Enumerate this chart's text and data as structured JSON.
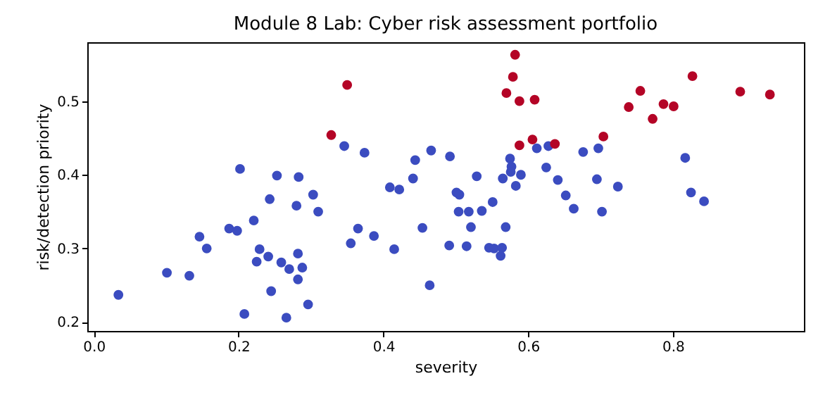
{
  "chart_data": {
    "type": "scatter",
    "title": "Module 8 Lab: Cyber risk assessment portfolio",
    "xlabel": "severity",
    "ylabel": "risk/detection priority",
    "xlim": [
      -0.009,
      0.981
    ],
    "ylim": [
      0.188,
      0.58
    ],
    "xticks": [
      {
        "value": 0,
        "label": "0.0"
      },
      0.2,
      0.4,
      0.6,
      0.8
    ],
    "yticks": [
      0.2,
      0.3,
      0.4,
      0.5
    ],
    "grid": false,
    "marker": "circle",
    "series": [
      {
        "color": "#3b4cc0",
        "x": [
          0.034,
          0.101,
          0.132,
          0.146,
          0.156,
          0.187,
          0.198,
          0.202,
          0.208,
          0.221,
          0.229,
          0.225,
          0.241,
          0.243,
          0.245,
          0.253,
          0.259,
          0.266,
          0.27,
          0.28,
          0.282,
          0.283,
          0.282,
          0.288,
          0.296,
          0.303,
          0.31,
          0.346,
          0.374,
          0.355,
          0.365,
          0.387,
          0.409,
          0.422,
          0.415,
          0.441,
          0.444,
          0.454,
          0.466,
          0.464,
          0.492,
          0.491,
          0.501,
          0.505,
          0.504,
          0.515,
          0.518,
          0.521,
          0.529,
          0.536,
          0.551,
          0.546,
          0.553,
          0.564,
          0.562,
          0.569,
          0.565,
          0.575,
          0.577,
          0.576,
          0.59,
          0.583,
          0.612,
          0.628,
          0.625,
          0.641,
          0.652,
          0.663,
          0.676,
          0.697,
          0.695,
          0.702,
          0.724,
          0.817,
          0.825,
          0.843
        ],
        "values": [
          0.237,
          0.267,
          0.263,
          0.316,
          0.3,
          0.327,
          0.324,
          0.408,
          0.211,
          0.338,
          0.299,
          0.282,
          0.289,
          0.367,
          0.242,
          0.399,
          0.281,
          0.206,
          0.272,
          0.358,
          0.293,
          0.397,
          0.258,
          0.274,
          0.224,
          0.373,
          0.35,
          0.439,
          0.43,
          0.307,
          0.327,
          0.317,
          0.383,
          0.38,
          0.299,
          0.395,
          0.42,
          0.328,
          0.433,
          0.25,
          0.425,
          0.304,
          0.376,
          0.373,
          0.35,
          0.303,
          0.35,
          0.329,
          0.398,
          0.351,
          0.363,
          0.301,
          0.3,
          0.301,
          0.29,
          0.329,
          0.395,
          0.422,
          0.411,
          0.404,
          0.4,
          0.385,
          0.436,
          0.439,
          0.41,
          0.393,
          0.372,
          0.354,
          0.431,
          0.436,
          0.394,
          0.35,
          0.384,
          0.423,
          0.376,
          0.364
        ]
      },
      {
        "color": "#b40426",
        "x": [
          0.328,
          0.35,
          0.582,
          0.579,
          0.57,
          0.588,
          0.609,
          0.588,
          0.606,
          0.637,
          0.704,
          0.739,
          0.755,
          0.772,
          0.787,
          0.801,
          0.827,
          0.893,
          0.934
        ],
        "values": [
          0.454,
          0.522,
          0.563,
          0.533,
          0.511,
          0.5,
          0.502,
          0.44,
          0.448,
          0.442,
          0.452,
          0.492,
          0.514,
          0.476,
          0.496,
          0.493,
          0.534,
          0.513,
          0.509
        ]
      }
    ]
  }
}
